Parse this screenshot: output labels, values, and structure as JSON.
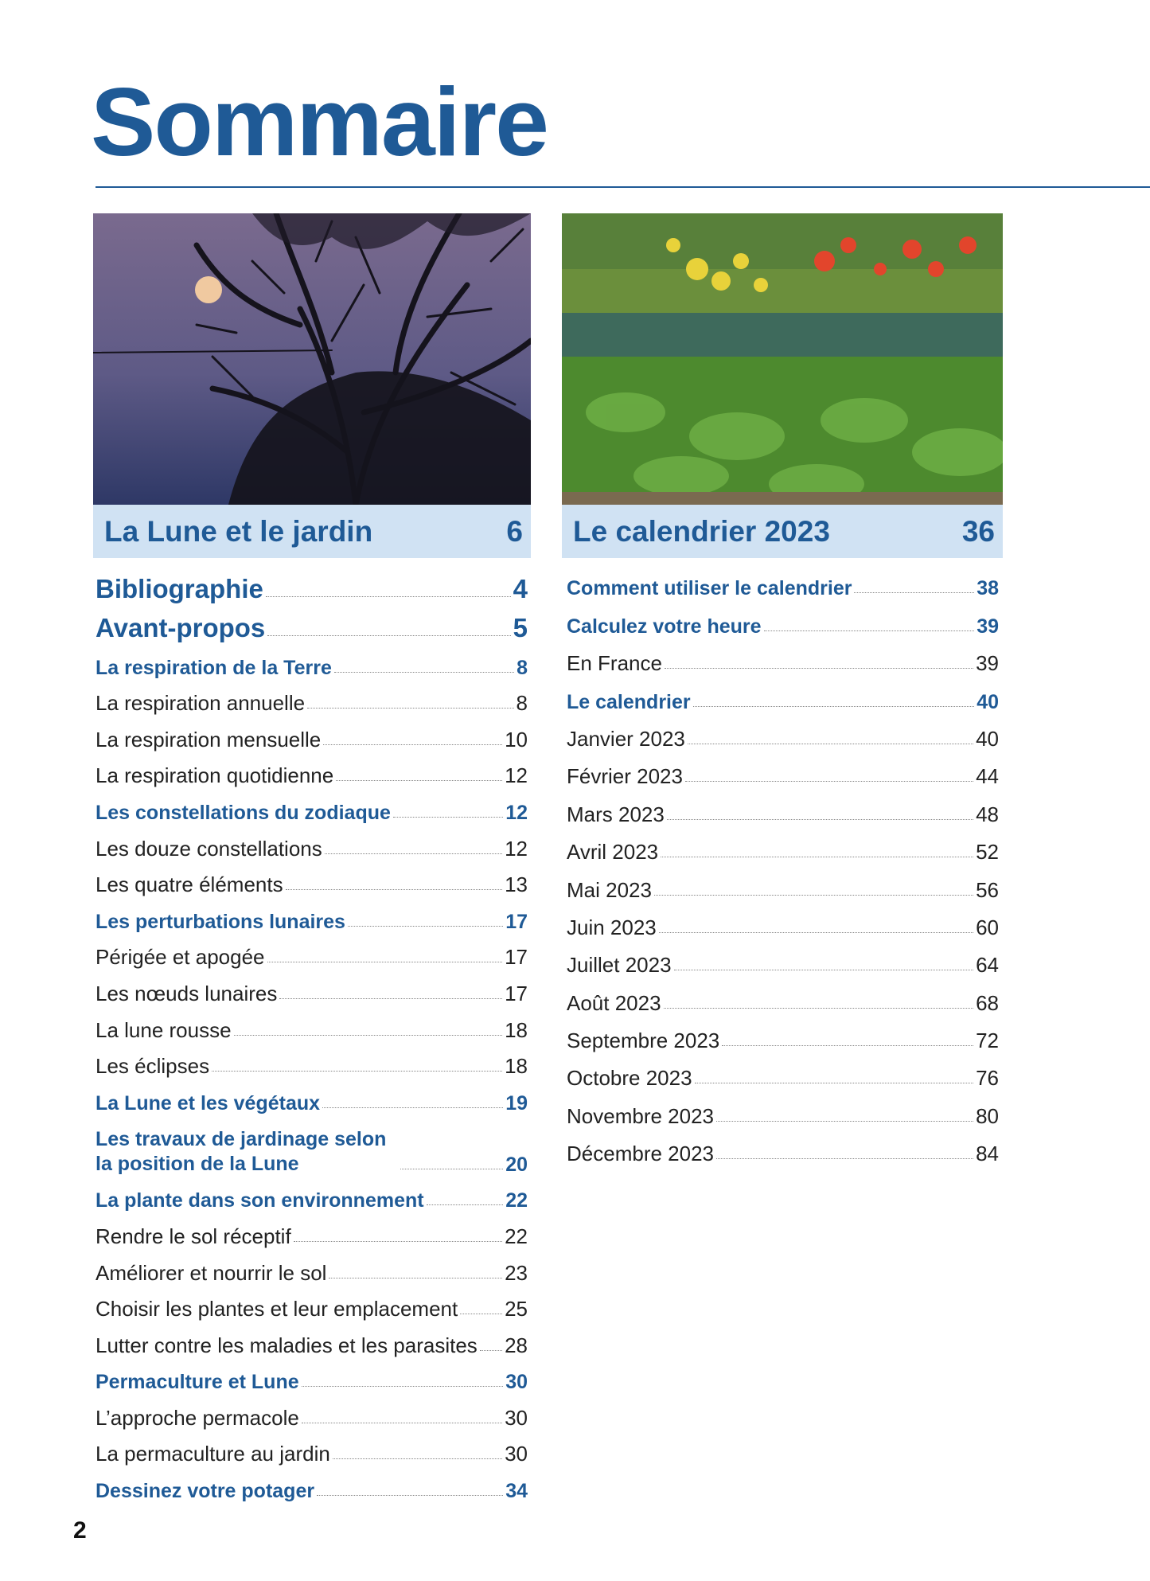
{
  "page": {
    "title": "Sommaire",
    "page_number": "2"
  },
  "colors": {
    "accent": "#1f5a96",
    "band": "#d0e2f3"
  },
  "left": {
    "image": "moon-over-tree-photo",
    "header": {
      "label": "La Lune et le jardin",
      "page": "6"
    },
    "entries": [
      {
        "label": "Bibliographie",
        "page": "4",
        "style": "big"
      },
      {
        "label": "Avant-propos",
        "page": "5",
        "style": "big"
      },
      {
        "label": "La respiration de la Terre",
        "page": "8",
        "style": "sec"
      },
      {
        "label": "La respiration annuelle",
        "page": "8",
        "style": "reg"
      },
      {
        "label": "La respiration mensuelle",
        "page": "10",
        "style": "reg"
      },
      {
        "label": "La respiration quotidienne",
        "page": "12",
        "style": "reg"
      },
      {
        "label": "Les constellations du zodiaque",
        "page": "12",
        "style": "sec"
      },
      {
        "label": "Les douze constellations",
        "page": "12",
        "style": "reg"
      },
      {
        "label": "Les quatre éléments",
        "page": "13",
        "style": "reg"
      },
      {
        "label": "Les perturbations lunaires",
        "page": "17",
        "style": "sec"
      },
      {
        "label": "Périgée et apogée",
        "page": "17",
        "style": "reg"
      },
      {
        "label": "Les nœuds lunaires",
        "page": "17",
        "style": "reg"
      },
      {
        "label": "La lune rousse",
        "page": "18",
        "style": "reg"
      },
      {
        "label": "Les éclipses",
        "page": "18",
        "style": "reg"
      },
      {
        "label": "La Lune et les végétaux",
        "page": "19",
        "style": "sec"
      },
      {
        "label": "Les travaux de jardinage selon la position de la Lune",
        "page": "20",
        "style": "sec"
      },
      {
        "label": "La plante dans son environnement",
        "page": "22",
        "style": "sec"
      },
      {
        "label": "Rendre le sol réceptif",
        "page": "22",
        "style": "reg"
      },
      {
        "label": "Améliorer et nourrir le sol",
        "page": "23",
        "style": "reg"
      },
      {
        "label": "Choisir les plantes et leur emplacement",
        "page": "25",
        "style": "reg"
      },
      {
        "label": "Lutter contre les maladies et les parasites",
        "page": "28",
        "style": "reg"
      },
      {
        "label": "Permaculture et Lune",
        "page": "30",
        "style": "sec"
      },
      {
        "label": "L’approche permacole",
        "page": "30",
        "style": "reg"
      },
      {
        "label": "La permaculture au jardin",
        "page": "30",
        "style": "reg"
      },
      {
        "label": "Dessinez votre potager",
        "page": "34",
        "style": "sec"
      }
    ]
  },
  "right": {
    "image": "vegetable-garden-photo",
    "header": {
      "label": "Le calendrier 2023",
      "page": "36"
    },
    "entries": [
      {
        "label": "Comment utiliser le calendrier",
        "page": "38",
        "style": "sec"
      },
      {
        "label": "Calculez votre heure",
        "page": "39",
        "style": "sec"
      },
      {
        "label": "En France",
        "page": "39",
        "style": "reg"
      },
      {
        "label": "Le calendrier",
        "page": "40",
        "style": "sec"
      },
      {
        "label": "Janvier 2023",
        "page": "40",
        "style": "reg"
      },
      {
        "label": "Février 2023",
        "page": "44",
        "style": "reg"
      },
      {
        "label": "Mars 2023",
        "page": "48",
        "style": "reg"
      },
      {
        "label": "Avril 2023",
        "page": "52",
        "style": "reg"
      },
      {
        "label": "Mai 2023",
        "page": "56",
        "style": "reg"
      },
      {
        "label": "Juin 2023",
        "page": "60",
        "style": "reg"
      },
      {
        "label": "Juillet 2023",
        "page": "64",
        "style": "reg"
      },
      {
        "label": "Août 2023",
        "page": "68",
        "style": "reg"
      },
      {
        "label": "Septembre 2023",
        "page": "72",
        "style": "reg"
      },
      {
        "label": "Octobre 2023",
        "page": "76",
        "style": "reg"
      },
      {
        "label": "Novembre 2023",
        "page": "80",
        "style": "reg"
      },
      {
        "label": "Décembre 2023",
        "page": "84",
        "style": "reg"
      }
    ]
  }
}
